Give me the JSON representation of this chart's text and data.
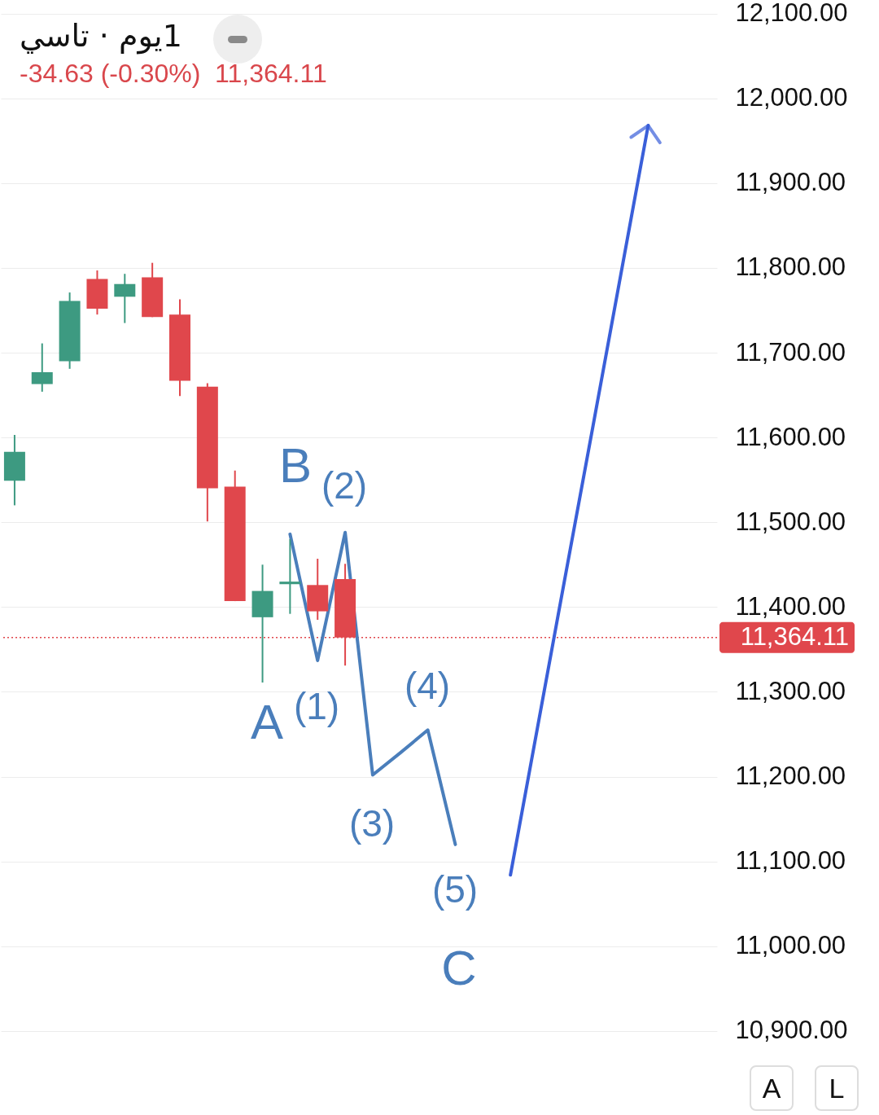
{
  "chart_data": {
    "type": "candlestick",
    "title": "1يوم · تاسي",
    "subtitle": "-34.63 (-0.30%)  11,364.11",
    "categories": [
      null,
      null,
      null,
      null,
      null,
      null,
      null,
      null,
      null,
      null,
      null,
      null,
      null,
      null,
      null,
      null,
      null,
      null,
      null,
      null,
      null,
      null,
      null,
      null,
      null,
      null
    ],
    "ohlc": [
      [
        11549,
        11603,
        11520,
        11583
      ],
      [
        11663,
        11711,
        11654,
        11677
      ],
      [
        11690,
        11771,
        11681,
        11761
      ],
      [
        11787,
        11797,
        11745,
        11752
      ],
      [
        11766,
        11793,
        11735,
        11781
      ],
      [
        11789,
        11806,
        11742,
        11742
      ],
      [
        11745,
        11763,
        11649,
        11667
      ],
      [
        11660,
        11664,
        11501,
        11540
      ],
      [
        11542,
        11561,
        11407,
        11407
      ],
      [
        11388,
        11450,
        11311,
        11419
      ],
      [
        11427,
        11480,
        11392,
        11430
      ],
      [
        11426,
        11457,
        11385,
        11395
      ],
      [
        11433,
        11451,
        11331,
        11364.11
      ],
      null,
      null,
      null,
      null,
      null,
      null,
      null,
      null,
      null,
      null,
      null,
      null,
      null
    ],
    "colors": [
      "#3d9a81",
      "#3d9a81",
      "#3d9a81",
      "#e0474c",
      "#3d9a81",
      "#e0474c",
      "#e0474c",
      "#e0474c",
      "#e0474c",
      "#3d9a81",
      "#3d9a81",
      "#e0474c",
      "#e0474c",
      null,
      null,
      null,
      null,
      null,
      null,
      null,
      null,
      null,
      null,
      null,
      null,
      null
    ],
    "series": [
      {
        "type": "line",
        "color": "#4a7ebb",
        "values": [
          null,
          null,
          null,
          null,
          null,
          null,
          null,
          null,
          null,
          null,
          11486,
          11337,
          11488,
          11202,
          11228,
          11255,
          11120,
          null,
          null,
          null,
          null,
          null,
          null,
          null,
          null,
          null
        ]
      },
      {
        "type": "line",
        "color": "#3a5fd9",
        "values": [
          null,
          null,
          null,
          null,
          null,
          null,
          null,
          null,
          null,
          null,
          null,
          null,
          null,
          null,
          null,
          null,
          null,
          null,
          11084,
          11261,
          11438,
          11614,
          11791,
          11968,
          null,
          null
        ]
      }
    ],
    "ref_lines": [
      {
        "axis": "y",
        "value": 11364.11,
        "label": "11,364.11",
        "color": "#e0474c",
        "line_style": "dotted"
      }
    ],
    "ylim": [
      10800,
      12115
    ],
    "yticks": [
      {
        "value": 10900,
        "label": "10,900.00"
      },
      {
        "value": 11000,
        "label": "11,000.00"
      },
      {
        "value": 11100,
        "label": "11,100.00"
      },
      {
        "value": 11200,
        "label": "11,200.00"
      },
      {
        "value": 11300,
        "label": "11,300.00"
      },
      {
        "value": 11400,
        "label": "11,400.00"
      },
      {
        "value": 11500,
        "label": "11,500.00"
      },
      {
        "value": 11600,
        "label": "11,600.00"
      },
      {
        "value": 11700,
        "label": "11,700.00"
      },
      {
        "value": 11800,
        "label": "11,800.00"
      },
      {
        "value": 11900,
        "label": "11,900.00"
      },
      {
        "value": 12000,
        "label": "12,000.00"
      },
      {
        "value": 12100,
        "label": "12,100.00"
      }
    ],
    "annotations": [
      "B",
      "(2)",
      "A",
      "(1)",
      "(4)",
      "(3)",
      "(5)",
      "C",
      "A",
      "L"
    ],
    "tick_labels": "y",
    "grid": "y"
  }
}
